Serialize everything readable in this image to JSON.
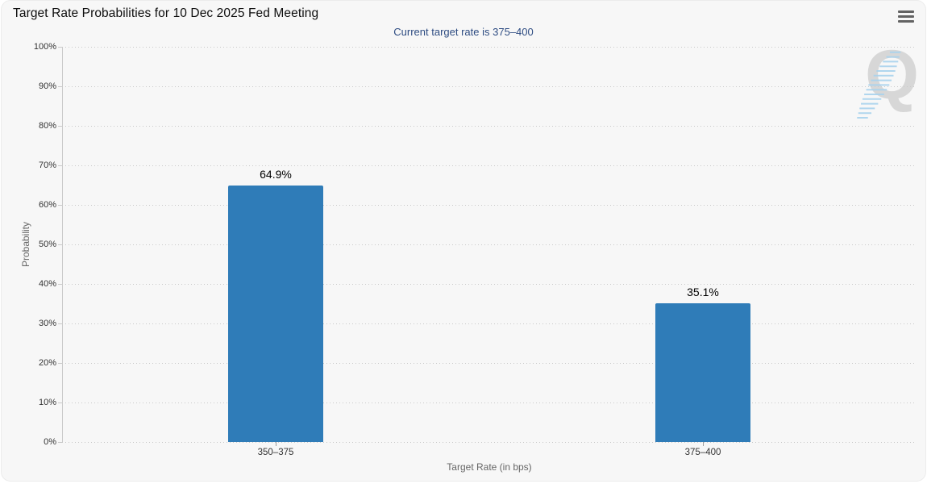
{
  "chart": {
    "watermark_letter": "Q",
    "icons": {
      "context_menu": "hamburger-menu-icon"
    }
  },
  "chart_data": {
    "type": "bar",
    "title": "Target Rate Probabilities for 10 Dec 2025 Fed Meeting",
    "subtitle": "Current target rate is 375–400",
    "categories": [
      "350–375",
      "375–400"
    ],
    "values": [
      64.9,
      35.1
    ],
    "data_labels": [
      "64.9%",
      "35.1%"
    ],
    "xlabel": "Target Rate (in bps)",
    "ylabel": "Probability",
    "ylim": [
      0,
      100
    ],
    "ytick_interval": 10,
    "ytick_suffix": "%",
    "grid": true,
    "gridline_style": "dotted",
    "legend": false
  },
  "colors": {
    "chart_background": "#f7f7f7",
    "title": "#0e0e0e",
    "subtitle": "#2e4c82",
    "tick_label": "#333333",
    "axis_title": "#666666",
    "gridline": "#c9c9c9",
    "axis_line": "#c9c9c9",
    "bar": "#2f7cb8",
    "data_label": "#000000",
    "menu_icon": "#636363",
    "watermark_q": "#bdbdbd",
    "watermark_swoosh": "#a9d3ee"
  }
}
